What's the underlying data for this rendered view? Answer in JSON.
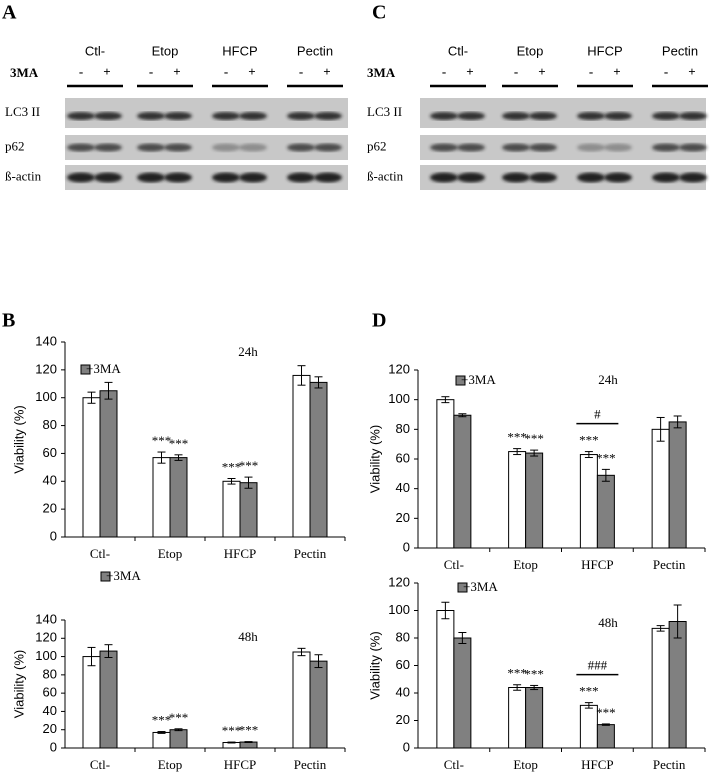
{
  "blots": [
    {
      "letter": "A",
      "conditions": [
        "Ctl-",
        "Etop",
        "HFCP",
        "Pectin"
      ],
      "treatment": "3MA",
      "signs": [
        "-",
        "+"
      ],
      "rows": [
        "LC3 II",
        "p62",
        "ß-actin"
      ]
    },
    {
      "letter": "C",
      "conditions": [
        "Ctl-",
        "Etop",
        "HFCP",
        "Pectin"
      ],
      "treatment": "3MA",
      "signs": [
        "-",
        "+"
      ],
      "rows": [
        "LC3 II",
        "p62",
        "ß-actin"
      ]
    }
  ],
  "plot_panels": [
    {
      "letter": "B"
    },
    {
      "letter": "D"
    }
  ],
  "chart_data": [
    {
      "type": "bar",
      "title": "24h",
      "ylabel": "Viability (%)",
      "categories": [
        "Ctl-",
        "Etop",
        "HFCP",
        "Pectin"
      ],
      "series": [
        {
          "color": "#ffffff",
          "values": [
            100,
            57,
            40,
            116
          ],
          "errors": [
            4,
            4,
            2,
            7
          ]
        },
        {
          "name": "+3MA",
          "color": "#808080",
          "values": [
            105,
            57,
            39,
            111
          ],
          "errors": [
            6,
            2,
            4,
            4
          ]
        }
      ],
      "annotations": [
        {
          "text": "***",
          "series": 0,
          "category": 1
        },
        {
          "text": "***",
          "series": 1,
          "category": 1
        },
        {
          "text": "***",
          "series": 0,
          "category": 2
        },
        {
          "text": "***",
          "series": 1,
          "category": 2
        }
      ],
      "ylim": [
        0,
        140
      ],
      "yticks": [
        0,
        20,
        40,
        60,
        80,
        100,
        120,
        140
      ]
    },
    {
      "type": "bar",
      "title": "48h",
      "ylabel": "Viability (%)",
      "categories": [
        "Ctl-",
        "Etop",
        "HFCP",
        "Pectin"
      ],
      "series": [
        {
          "color": "#ffffff",
          "values": [
            100,
            17,
            6,
            105
          ],
          "errors": [
            10,
            1,
            0.5,
            4
          ]
        },
        {
          "name": "+3MA",
          "color": "#808080",
          "values": [
            106,
            20,
            6.5,
            95
          ],
          "errors": [
            7,
            1,
            0.5,
            7
          ]
        }
      ],
      "annotations": [
        {
          "text": "***",
          "series": 0,
          "category": 1
        },
        {
          "text": "***",
          "series": 1,
          "category": 1
        },
        {
          "text": "***",
          "series": 0,
          "category": 2
        },
        {
          "text": "***",
          "series": 1,
          "category": 2
        }
      ],
      "ylim": [
        0,
        140
      ],
      "yticks": [
        0,
        20,
        40,
        60,
        80,
        100,
        120,
        140
      ]
    },
    {
      "type": "bar",
      "title": "24h",
      "ylabel": "Viability (%)",
      "categories": [
        "Ctl-",
        "Etop",
        "HFCP",
        "Pectin"
      ],
      "series": [
        {
          "color": "#ffffff",
          "values": [
            100,
            65,
            63,
            80
          ],
          "errors": [
            2,
            2,
            2,
            8
          ]
        },
        {
          "name": "+3MA",
          "color": "#808080",
          "values": [
            89.5,
            64,
            49,
            85
          ],
          "errors": [
            1,
            2,
            4,
            4
          ]
        }
      ],
      "annotations": [
        {
          "text": "***",
          "series": 0,
          "category": 1
        },
        {
          "text": "***",
          "series": 1,
          "category": 1
        },
        {
          "text": "***",
          "series": 0,
          "category": 2
        },
        {
          "text": "***",
          "series": 1,
          "category": 2
        },
        {
          "text": "#",
          "category": 2,
          "bracket": true
        }
      ],
      "ylim": [
        0,
        120
      ],
      "yticks": [
        0,
        20,
        40,
        60,
        80,
        100,
        120
      ]
    },
    {
      "type": "bar",
      "title": "48h",
      "ylabel": "Viability (%)",
      "categories": [
        "Ctl-",
        "Etop",
        "HFCP",
        "Pectin"
      ],
      "series": [
        {
          "color": "#ffffff",
          "values": [
            100,
            44,
            31,
            87
          ],
          "errors": [
            6,
            2,
            2,
            2
          ]
        },
        {
          "name": "+3MA",
          "color": "#808080",
          "values": [
            80,
            44,
            17,
            92
          ],
          "errors": [
            4,
            1.5,
            0.5,
            12
          ]
        }
      ],
      "annotations": [
        {
          "text": "***",
          "series": 0,
          "category": 1
        },
        {
          "text": "***",
          "series": 1,
          "category": 1
        },
        {
          "text": "***",
          "series": 0,
          "category": 2
        },
        {
          "text": "***",
          "series": 1,
          "category": 2
        },
        {
          "text": "###",
          "category": 2,
          "bracket": true
        }
      ],
      "ylim": [
        0,
        120
      ],
      "yticks": [
        0,
        20,
        40,
        60,
        80,
        100,
        120
      ]
    }
  ]
}
